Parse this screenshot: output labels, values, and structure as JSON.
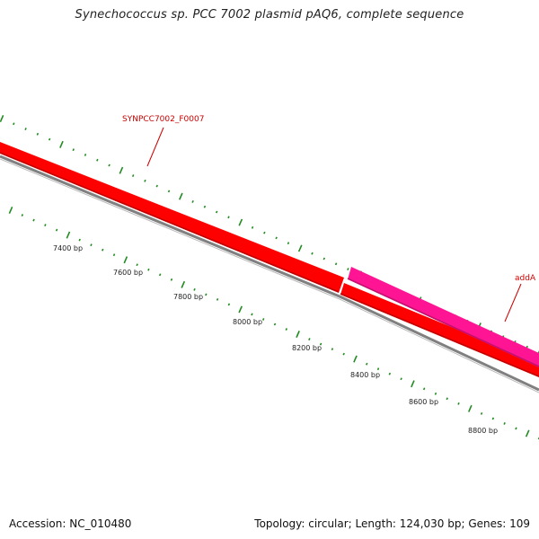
{
  "title": "Synechococcus sp. PCC 7002 plasmid pAQ6, complete sequence",
  "footer": {
    "accession": "Accession: NC_010480",
    "summary": "Topology: circular; Length: 124,030 bp; Genes: 109"
  },
  "colors": {
    "gene_forward": "#ff0000",
    "gene_highlight": "#ff1493",
    "backbone": "#808080",
    "ticks": "#228b22",
    "label_text": "#cc0000"
  },
  "gene_labels": [
    {
      "name": "SYNPCC7002_F0007"
    },
    {
      "name": "addA"
    }
  ],
  "scale_labels": [
    "7400 bp",
    "7600 bp",
    "7800 bp",
    "8000 bp",
    "8200 bp",
    "8400 bp",
    "8600 bp",
    "8800 bp"
  ]
}
